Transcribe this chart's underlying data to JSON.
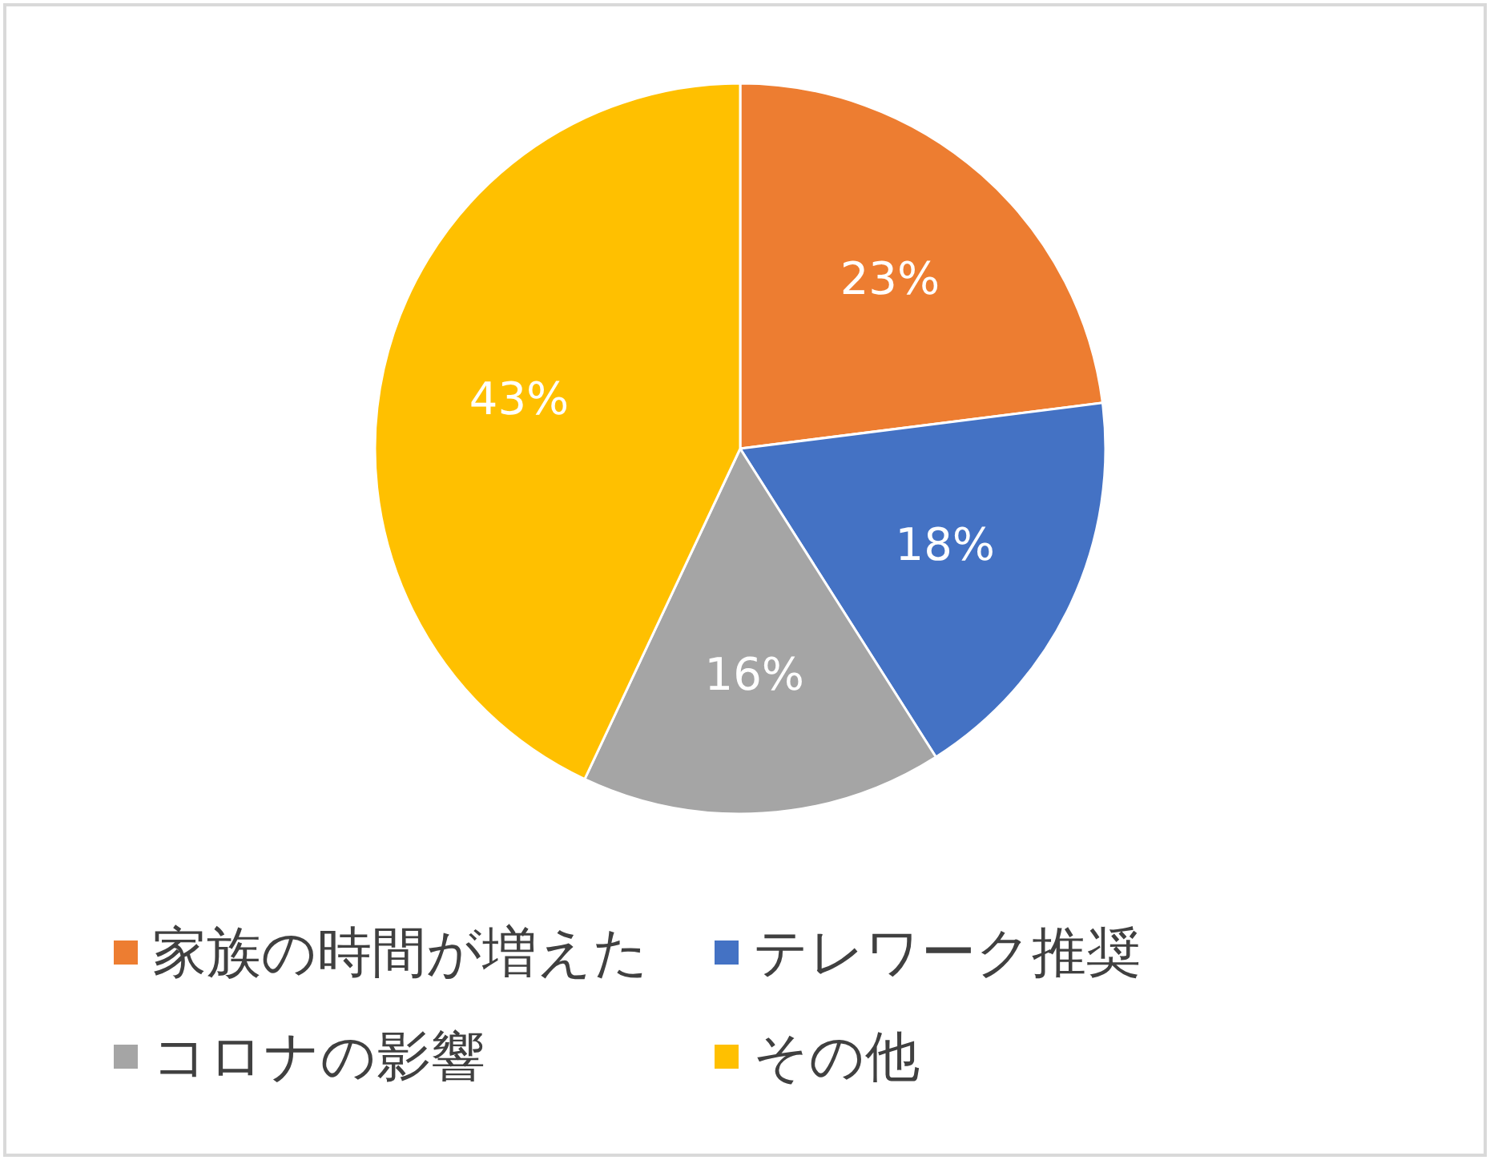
{
  "chart_data": {
    "type": "pie",
    "categories": [
      "家族の時間が増えた",
      "テレワーク推奨",
      "コロナの影響",
      "その他"
    ],
    "values": [
      23,
      18,
      16,
      43
    ],
    "value_labels": [
      "23%",
      "18%",
      "16%",
      "43%"
    ],
    "colors": [
      "#ed7d31",
      "#4472c4",
      "#a5a5a5",
      "#ffc000"
    ],
    "legend": "bottom"
  }
}
